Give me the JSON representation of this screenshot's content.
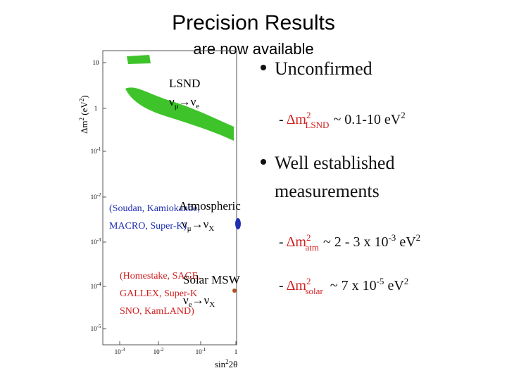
{
  "header": {
    "title": "Precision Results",
    "subtitle": "are now available"
  },
  "plot": {
    "y_axis_label": {
      "base": "Δm",
      "sup": "2",
      "unit": "(eV",
      "unit_sup": "2",
      "close": ")"
    },
    "x_axis_label": {
      "base": "sin",
      "sup": "2",
      "rest": "2θ"
    },
    "y_ticks": [
      {
        "base": "10",
        "exp": ""
      },
      {
        "base": "1",
        "exp": ""
      },
      {
        "base": "10",
        "exp": "-1"
      },
      {
        "base": "10",
        "exp": "-2"
      },
      {
        "base": "10",
        "exp": "-3"
      },
      {
        "base": "10",
        "exp": "-4"
      },
      {
        "base": "10",
        "exp": "-5"
      }
    ],
    "x_ticks": [
      {
        "base": "10",
        "exp": "-3"
      },
      {
        "base": "10",
        "exp": "-2"
      },
      {
        "base": "10",
        "exp": "-1"
      },
      {
        "base": "1",
        "exp": ""
      }
    ],
    "lsnd": {
      "label": "LSND",
      "parts": [
        "ν",
        "μ",
        "→ν",
        "e"
      ]
    },
    "atmospheric": {
      "experiments": [
        "(Soudan, Kamiokande,",
        "MACRO, Super-K)"
      ],
      "label": "Atmospheric",
      "parts": [
        "ν",
        "μ",
        "→ν",
        "X"
      ]
    },
    "solar": {
      "experiments": [
        "(Homestake, SAGE,",
        "GALLEX, Super-K",
        "SNO, KamLAND)"
      ],
      "label": "Solar MSW",
      "parts": [
        "ν",
        "e",
        "→ν",
        "X"
      ]
    }
  },
  "bullets": [
    {
      "text": "Unconfirmed",
      "items": [
        {
          "symbol": "Δm",
          "sup": "2",
          "sub": "LSND",
          "value": "~ 0.1-10 eV",
          "value_sup": "2"
        }
      ]
    },
    {
      "text": [
        "Well established",
        "measurements"
      ],
      "items": [
        {
          "symbol": "Δm",
          "sup": "2",
          "sub": "atm",
          "value": "~ 2 - 3 x 10",
          "exp": "-3",
          "unit": " eV",
          "value_sup": "2"
        },
        {
          "symbol": "Δm",
          "sup": "2",
          "sub": "solar",
          "value": "~ 7 x 10",
          "exp": "-5",
          "unit": " eV",
          "value_sup": "2"
        }
      ]
    }
  ]
}
